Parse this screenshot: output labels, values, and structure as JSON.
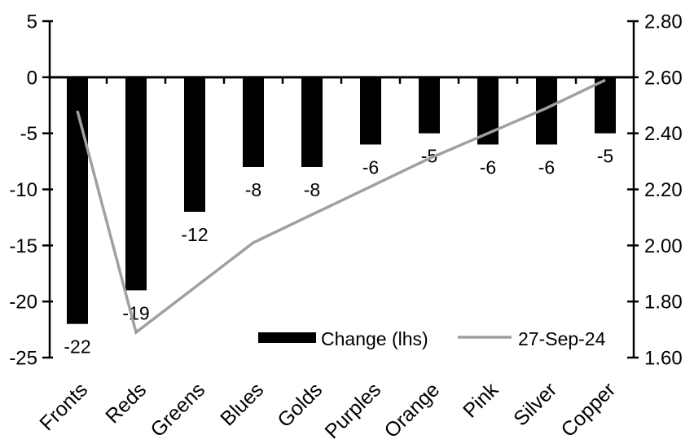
{
  "chart_data": {
    "type": "bar",
    "combo": "bar + line, dual y-axis",
    "title": "",
    "xlabel": "",
    "ylabel_left": "",
    "ylabel_right": "",
    "grid": false,
    "legend_position": "inside-bottom-center",
    "categories": [
      "Fronts",
      "Reds",
      "Greens",
      "Blues",
      "Golds",
      "Purples",
      "Orange",
      "Pink",
      "Silver",
      "Copper"
    ],
    "series": [
      {
        "name": "Change (lhs)",
        "type": "bar",
        "axis": "left",
        "color": "#000000",
        "values": [
          -22,
          -19,
          -12,
          -8,
          -8,
          -6,
          -5,
          -6,
          -6,
          -5
        ],
        "data_labels": [
          "-22",
          "-19",
          "-12",
          "-8",
          "-8",
          "-6",
          "-5",
          "-6",
          "-6",
          "-5"
        ]
      },
      {
        "name": "27-Sep-24",
        "type": "line",
        "axis": "right",
        "color": "#a0a0a0",
        "values": [
          2.48,
          1.69,
          1.85,
          2.01,
          2.11,
          2.21,
          2.31,
          2.4,
          2.49,
          2.59
        ]
      }
    ],
    "left_axis": {
      "min": -25,
      "max": 5,
      "tick_labels": [
        "5",
        "0",
        "-5",
        "-10",
        "-15",
        "-20",
        "-25"
      ],
      "tick_values": [
        5,
        0,
        -5,
        -10,
        -15,
        -20,
        -25
      ]
    },
    "right_axis": {
      "min": 1.6,
      "max": 2.8,
      "tick_labels": [
        "2.80",
        "2.60",
        "2.40",
        "2.20",
        "2.00",
        "1.80",
        "1.60"
      ],
      "tick_values": [
        2.8,
        2.6,
        2.4,
        2.2,
        2.0,
        1.8,
        1.6
      ]
    },
    "legend": [
      {
        "label": "Change (lhs)",
        "swatch": "bar",
        "color": "#000000"
      },
      {
        "label": "27-Sep-24",
        "swatch": "line",
        "color": "#a0a0a0"
      }
    ],
    "colors": {
      "bar": "#000000",
      "line": "#a0a0a0",
      "axis": "#000000",
      "text": "#000000",
      "background": "#ffffff"
    }
  }
}
